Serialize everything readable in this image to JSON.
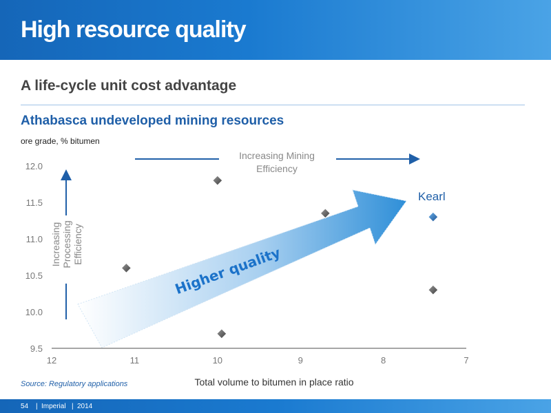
{
  "header": {
    "title": "High resource quality"
  },
  "subtitle": "A life-cycle unit cost advantage",
  "source": "Source: Regulatory applications",
  "footer": {
    "page": "54",
    "company": "Imperial",
    "year": "2014"
  },
  "colors": {
    "header": "#1a7ad0",
    "accent": "#1f5fa8",
    "marker": "#555555",
    "highlight": "#1f5fa8"
  },
  "chart_data": {
    "type": "scatter",
    "title": "Athabasca undeveloped mining resources",
    "ylabel": "ore grade, % bitumen",
    "xlabel": "Total volume to bitumen in place ratio",
    "xlim": [
      12,
      7
    ],
    "ylim": [
      9.5,
      12.0
    ],
    "x_reversed": true,
    "xticks": [
      12,
      11,
      10,
      9,
      8,
      7
    ],
    "yticks": [
      9.5,
      10.0,
      10.5,
      11.0,
      11.5,
      12.0
    ],
    "grid": false,
    "points": [
      {
        "x": 11.1,
        "y": 10.6,
        "label": "",
        "highlight": false
      },
      {
        "x": 10.0,
        "y": 11.8,
        "label": "",
        "highlight": false
      },
      {
        "x": 9.95,
        "y": 9.7,
        "label": "",
        "highlight": false
      },
      {
        "x": 8.7,
        "y": 11.35,
        "label": "",
        "highlight": false
      },
      {
        "x": 7.4,
        "y": 11.3,
        "label": "Kearl",
        "highlight": true
      },
      {
        "x": 7.4,
        "y": 10.3,
        "label": "",
        "highlight": false
      }
    ],
    "annotations": {
      "x_arrow": [
        "Increasing Mining",
        "Efficiency"
      ],
      "y_arrow": [
        "Increasing",
        "Processing",
        "Efficiency"
      ],
      "big_arrow": "Higher quality"
    }
  }
}
